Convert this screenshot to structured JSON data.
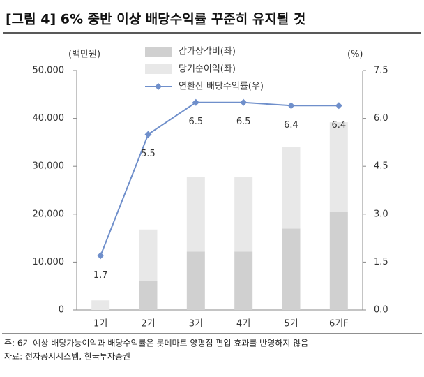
{
  "chart_data": {
    "type": "bar_line",
    "title": "[그림 4] 6% 중반 이상 배당수익률 꾸준히 유지될 것",
    "y_unit": "(백만원)",
    "y2_unit": "(%)",
    "categories": [
      "1기",
      "2기",
      "3기",
      "4기",
      "5기",
      "6기F"
    ],
    "series": [
      {
        "name": "감가상각비(좌)",
        "color": "#d0d0d0",
        "values": [
          0,
          6000,
          12200,
          12200,
          17000,
          20500
        ]
      },
      {
        "name": "당기순이익(좌)",
        "color": "#e8e8e8",
        "values": [
          2000,
          10800,
          15600,
          15600,
          17100,
          18700
        ]
      },
      {
        "name": "연환산 배당수익률(우)",
        "color": "#6f8fcb",
        "axis": "y2",
        "values": [
          1.7,
          5.5,
          6.5,
          6.5,
          6.4,
          6.4
        ]
      }
    ],
    "ylim": [
      0,
      50000
    ],
    "yticks": [
      0,
      {
        "value": 10000,
        "label": "10,000"
      },
      {
        "value": 20000,
        "label": "20,000"
      },
      {
        "value": 30000,
        "label": "30,000"
      },
      {
        "value": 40000,
        "label": "40,000"
      },
      {
        "value": 50000,
        "label": "50,000"
      }
    ],
    "y2lim": [
      0,
      7.5
    ],
    "y2ticks": [
      {
        "value": 0,
        "label": "0.0"
      },
      1.5,
      {
        "value": 3,
        "label": "3.0"
      },
      4.5,
      {
        "value": 6,
        "label": "6.0"
      },
      7.5
    ],
    "notes": [
      "주: 6기 예상 배당가능이익과 배당수익률은 롯데마트 양평점 편입 효과를 반영하지 않음",
      "자료: 전자공시시스템, 한국투자증권"
    ]
  }
}
